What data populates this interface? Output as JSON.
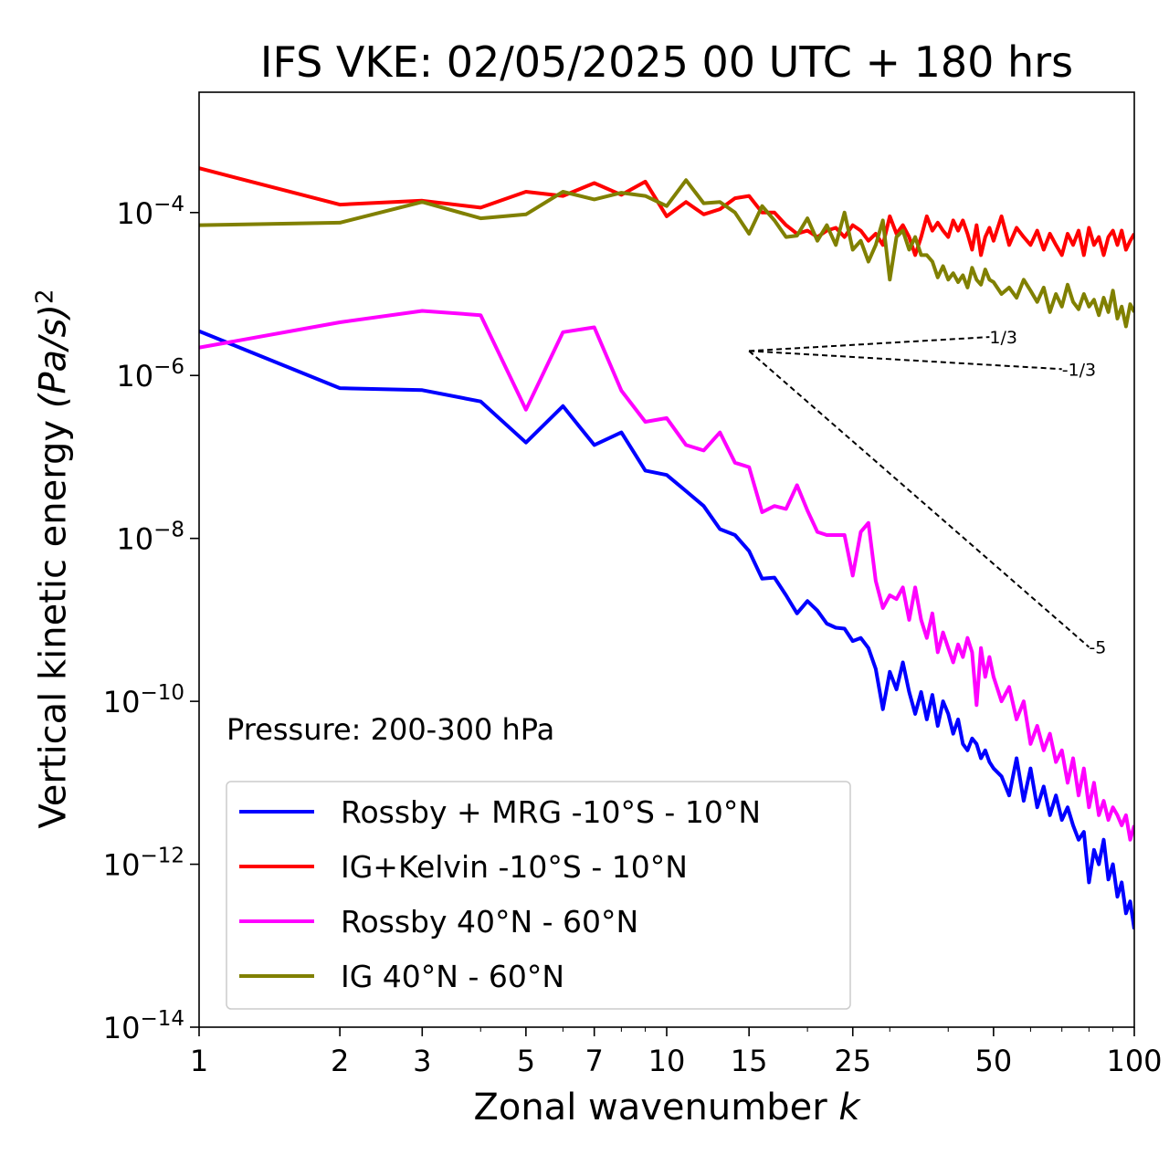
{
  "colors": {
    "rossby_mrg": "#0000ff",
    "ig_kelvin": "#ff0000",
    "rossby_midlat": "#ff00ff",
    "ig_midlat": "#808000",
    "ref_lines": "#000000"
  },
  "chart_data": {
    "type": "line",
    "title": "IFS VKE: 02/05/2025 00 UTC + 180 hrs",
    "xlabel_text": "Zonal wavenumber",
    "xlabel_var": "k",
    "ylabel_text": "Vertical kinetic energy",
    "ylabel_unit": "(Pa/s)",
    "ylabel_exp": "2",
    "xscale": "log",
    "yscale": "log",
    "xlim": [
      1,
      100
    ],
    "ylim": [
      1e-14,
      0.003
    ],
    "x_ticks": [
      {
        "value": 1,
        "label": "1"
      },
      {
        "value": 2,
        "label": "2"
      },
      {
        "value": 3,
        "label": "3"
      },
      {
        "value": 5,
        "label": "5"
      },
      {
        "value": 7,
        "label": "7"
      },
      {
        "value": 10,
        "label": "10"
      },
      {
        "value": 15,
        "label": "15"
      },
      {
        "value": 25,
        "label": "25"
      },
      {
        "value": 50,
        "label": "50"
      },
      {
        "value": 100,
        "label": "100"
      }
    ],
    "y_ticks": [
      {
        "value": 0.0001,
        "label": "10",
        "exp": "−4"
      },
      {
        "value": 1e-06,
        "label": "10",
        "exp": "−6"
      },
      {
        "value": 1e-08,
        "label": "10",
        "exp": "−8"
      },
      {
        "value": 1e-10,
        "label": "10",
        "exp": "−10"
      },
      {
        "value": 1e-12,
        "label": "10",
        "exp": "−12"
      },
      {
        "value": 1e-14,
        "label": "10",
        "exp": "−14"
      }
    ],
    "annotation": "Pressure: 200-300 hPa",
    "legend_position": "lower-left",
    "reference_lines": [
      {
        "label": "1/3",
        "slope": 0.333,
        "x_start": 15,
        "y_start": 2e-06,
        "x_end": 49
      },
      {
        "label": "-1/3",
        "slope": -0.333,
        "x_start": 15,
        "y_start": 2e-06,
        "x_end": 70
      },
      {
        "label": "-5",
        "slope": -5,
        "x_start": 15,
        "y_start": 2e-06,
        "x_end": 80
      }
    ],
    "series": [
      {
        "name": "Rossby + MRG -10°S - 10°N",
        "color_key": "rossby_mrg",
        "x": [
          1,
          2,
          3,
          4,
          5,
          6,
          7,
          8,
          9,
          10,
          11,
          12,
          13,
          14,
          15,
          16,
          17,
          18,
          19,
          20,
          21,
          22,
          23,
          24,
          25,
          26,
          27,
          28,
          29,
          30,
          31,
          32,
          33,
          34,
          35,
          36,
          37,
          38,
          39,
          40,
          41,
          42,
          43,
          44,
          45,
          46,
          47,
          48,
          49,
          50,
          52,
          54,
          56,
          58,
          60,
          62,
          64,
          66,
          68,
          70,
          72,
          74,
          76,
          78,
          80,
          82,
          84,
          86,
          88,
          90,
          92,
          94,
          96,
          98,
          100
        ],
        "y": [
          3.5e-06,
          7e-07,
          6.6e-07,
          4.8e-07,
          1.5e-07,
          4.2e-07,
          1.4e-07,
          2e-07,
          6.8e-08,
          6e-08,
          3.8e-08,
          2.5e-08,
          1.3e-08,
          1.1e-08,
          7e-09,
          3.2e-09,
          3.3e-09,
          2e-09,
          1.2e-09,
          1.7e-09,
          1.3e-09,
          9e-10,
          8e-10,
          7.8e-10,
          5.5e-10,
          6e-10,
          4.5e-10,
          2.5e-10,
          8e-11,
          2.3e-10,
          1.4e-10,
          3e-10,
          1.3e-10,
          7e-11,
          1.3e-10,
          6e-11,
          1.2e-10,
          5e-11,
          1e-10,
          7e-11,
          4e-11,
          6e-11,
          3e-11,
          2.5e-11,
          3.5e-11,
          3e-11,
          2e-11,
          2.5e-11,
          1.8e-11,
          1.5e-11,
          1.2e-11,
          7e-12,
          2e-11,
          6e-12,
          1.5e-11,
          5e-12,
          9e-12,
          4e-12,
          7e-12,
          3.5e-12,
          5e-12,
          3e-12,
          2e-12,
          2.5e-12,
          6e-13,
          1.5e-12,
          1e-12,
          2e-12,
          6.5e-13,
          1e-12,
          4e-13,
          6e-13,
          2.5e-13,
          3.5e-13,
          1.6e-13
        ]
      },
      {
        "name": "IG+Kelvin -10°S - 10°N",
        "color_key": "ig_kelvin",
        "x": [
          1,
          2,
          3,
          4,
          5,
          6,
          7,
          8,
          9,
          10,
          11,
          12,
          13,
          14,
          15,
          16,
          17,
          18,
          19,
          20,
          21,
          22,
          23,
          24,
          25,
          26,
          27,
          28,
          29,
          30,
          31,
          32,
          33,
          34,
          35,
          36,
          37,
          38,
          39,
          40,
          41,
          42,
          43,
          44,
          45,
          46,
          47,
          48,
          49,
          50,
          52,
          54,
          56,
          58,
          60,
          62,
          64,
          66,
          68,
          70,
          72,
          74,
          76,
          78,
          80,
          82,
          84,
          86,
          88,
          90,
          92,
          94,
          96,
          98,
          100
        ],
        "y": [
          0.00035,
          0.000125,
          0.00014,
          0.000115,
          0.00018,
          0.00016,
          0.00023,
          0.000165,
          0.00024,
          9e-05,
          0.000135,
          9.5e-05,
          0.00011,
          0.00015,
          0.00016,
          0.0001,
          0.0001,
          7e-05,
          5.5e-05,
          6e-05,
          5e-05,
          6e-05,
          6.5e-05,
          5e-05,
          7e-05,
          6e-05,
          4.5e-05,
          5.5e-05,
          4e-05,
          9e-05,
          5.5e-05,
          7e-05,
          5e-05,
          3e-05,
          5e-05,
          9e-05,
          6e-05,
          7.5e-05,
          6e-05,
          5e-05,
          8e-05,
          6e-05,
          8e-05,
          5.5e-05,
          3.5e-05,
          7e-05,
          3e-05,
          5e-05,
          6.5e-05,
          4.5e-05,
          9e-05,
          4e-05,
          6.5e-05,
          5e-05,
          4e-05,
          6e-05,
          3.5e-05,
          5.5e-05,
          4e-05,
          3e-05,
          5.5e-05,
          4e-05,
          6e-05,
          3e-05,
          6.5e-05,
          4e-05,
          5e-05,
          3e-05,
          5e-05,
          6e-05,
          4e-05,
          6e-05,
          3.5e-05,
          4.5e-05,
          5.5e-05
        ]
      },
      {
        "name": "Rossby 40°N - 60°N",
        "color_key": "rossby_midlat",
        "x": [
          1,
          2,
          3,
          4,
          5,
          6,
          7,
          8,
          9,
          10,
          11,
          12,
          13,
          14,
          15,
          16,
          17,
          18,
          19,
          20,
          21,
          22,
          23,
          24,
          25,
          26,
          27,
          28,
          29,
          30,
          31,
          32,
          33,
          34,
          35,
          36,
          37,
          38,
          39,
          40,
          41,
          42,
          43,
          44,
          45,
          46,
          47,
          48,
          49,
          50,
          52,
          54,
          56,
          58,
          60,
          62,
          64,
          66,
          68,
          70,
          72,
          74,
          76,
          78,
          80,
          82,
          84,
          86,
          88,
          90,
          92,
          94,
          96,
          98,
          100
        ],
        "y": [
          2.2e-06,
          4.5e-06,
          6.2e-06,
          5.5e-06,
          3.8e-07,
          3.4e-06,
          3.9e-06,
          6.5e-07,
          2.7e-07,
          3e-07,
          1.4e-07,
          1.2e-07,
          2e-07,
          8.5e-08,
          7.5e-08,
          2.1e-08,
          2.5e-08,
          2.3e-08,
          4.5e-08,
          2.2e-08,
          1.2e-08,
          1.1e-08,
          1.1e-08,
          1.1e-08,
          3.5e-09,
          1.2e-08,
          1.55e-08,
          3e-09,
          1.4e-09,
          2e-09,
          1.8e-09,
          2.5e-09,
          1e-09,
          2.5e-09,
          1e-09,
          6e-10,
          1.2e-09,
          4e-10,
          7e-10,
          4.5e-10,
          3e-10,
          5e-10,
          3.5e-10,
          6e-10,
          4e-10,
          9e-11,
          4.5e-10,
          2e-10,
          3.5e-10,
          2e-10,
          1e-10,
          1.5e-10,
          6e-11,
          1e-10,
          3e-11,
          5e-11,
          2.5e-11,
          4e-11,
          1.8e-11,
          2.5e-11,
          1e-11,
          2e-11,
          7e-12,
          1.5e-11,
          5e-12,
          1e-11,
          4e-12,
          6e-12,
          3.5e-12,
          5e-12,
          4e-12,
          3e-12,
          4e-12,
          2e-12,
          3e-12
        ]
      },
      {
        "name": "IG 40°N - 60°N",
        "color_key": "ig_midlat",
        "x": [
          1,
          2,
          3,
          4,
          5,
          6,
          7,
          8,
          9,
          10,
          11,
          12,
          13,
          14,
          15,
          16,
          17,
          18,
          19,
          20,
          21,
          22,
          23,
          24,
          25,
          26,
          27,
          28,
          29,
          30,
          31,
          32,
          33,
          34,
          35,
          36,
          37,
          38,
          39,
          40,
          41,
          42,
          43,
          44,
          45,
          46,
          47,
          48,
          49,
          50,
          52,
          54,
          56,
          58,
          60,
          62,
          64,
          66,
          68,
          70,
          72,
          74,
          76,
          78,
          80,
          82,
          84,
          86,
          88,
          90,
          92,
          94,
          96,
          98,
          100
        ],
        "y": [
          7e-05,
          7.5e-05,
          0.000135,
          8.5e-05,
          9.5e-05,
          0.00018,
          0.000145,
          0.000175,
          0.00016,
          0.00012,
          0.00025,
          0.00013,
          0.000135,
          0.0001,
          5.5e-05,
          0.00012,
          8e-05,
          5e-05,
          5.2e-05,
          8.5e-05,
          4.5e-05,
          7e-05,
          4e-05,
          0.0001,
          3.5e-05,
          4.5e-05,
          2.5e-05,
          4e-05,
          8e-05,
          1.5e-05,
          5e-05,
          6e-05,
          3.5e-05,
          5e-05,
          3e-05,
          3e-05,
          2.5e-05,
          1.6e-05,
          2.2e-05,
          1.5e-05,
          1.8e-05,
          1.4e-05,
          1.7e-05,
          1.2e-05,
          2.1e-05,
          1.5e-05,
          1.3e-05,
          2e-05,
          1.5e-05,
          1.4e-05,
          1e-05,
          1.2e-05,
          9e-06,
          1.5e-05,
          1.1e-05,
          8e-06,
          1.2e-05,
          6e-06,
          1e-05,
          7e-06,
          1.3e-05,
          8e-06,
          6.5e-06,
          1e-05,
          7e-06,
          8.5e-06,
          5.5e-06,
          9e-06,
          6e-06,
          1.1e-05,
          5e-06,
          7e-06,
          4e-06,
          7.5e-06,
          6e-06
        ]
      }
    ]
  }
}
